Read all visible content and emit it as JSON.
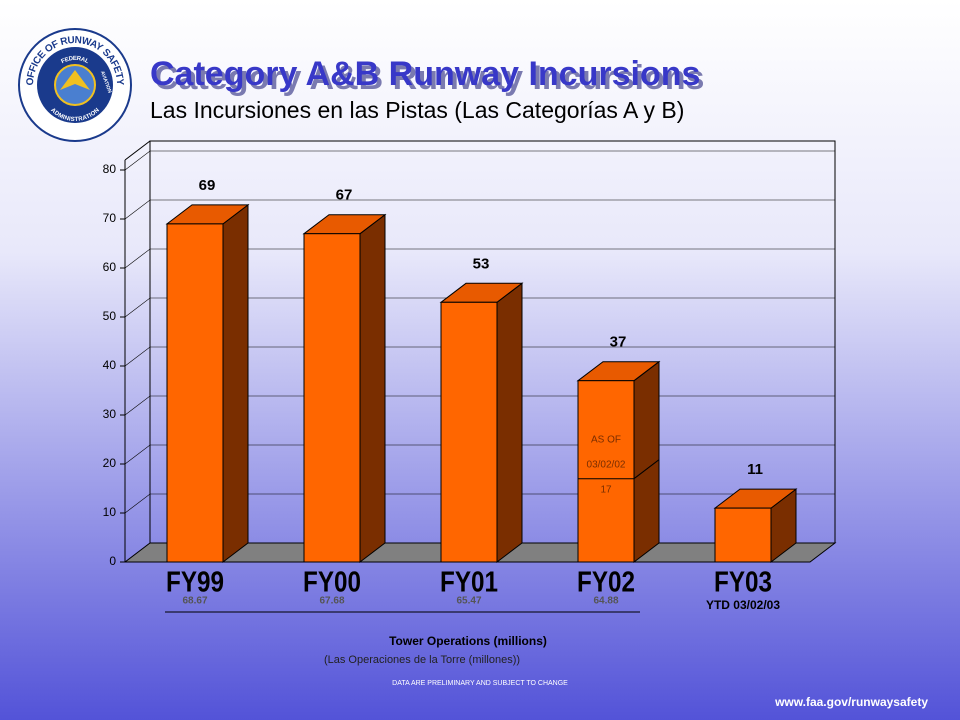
{
  "logo": {
    "top_text": "OFFICE OF RUNWAY SAFETY",
    "inner_top": "FEDERAL",
    "inner_right": "AVIATION",
    "inner_bottom": "ADMINISTRATION"
  },
  "chart_data": {
    "type": "bar",
    "title": "Category A&B Runway Incursions",
    "subtitle": "Las Incursiones en las Pistas (Las Categorías A y B)",
    "categories": [
      "FY99",
      "FY00",
      "FY01",
      "FY02",
      "FY03"
    ],
    "values": [
      69,
      67,
      53,
      37,
      11
    ],
    "color": "#ff6600",
    "side_color": "#7a2e00",
    "top_color": "#e85a00",
    "ylim": [
      0,
      80
    ],
    "yticks": [
      0,
      10,
      20,
      30,
      40,
      50,
      60,
      70,
      80
    ],
    "grid": true,
    "segment_annotation": {
      "category_index": 3,
      "line1": "AS OF",
      "line2": "03/02/02",
      "value": 17
    },
    "tower_operations": [
      68.67,
      67.68,
      65.47,
      64.88
    ],
    "ytd_note": "YTD 03/02/03",
    "x_label": "Tower Operations  (millions)",
    "x_label_es": "(Las Operaciones de la Torre (millones))",
    "footnote": "DATA ARE PRELIMINARY AND SUBJECT TO CHANGE",
    "url": "www.faa.gov/runwaysafety"
  }
}
